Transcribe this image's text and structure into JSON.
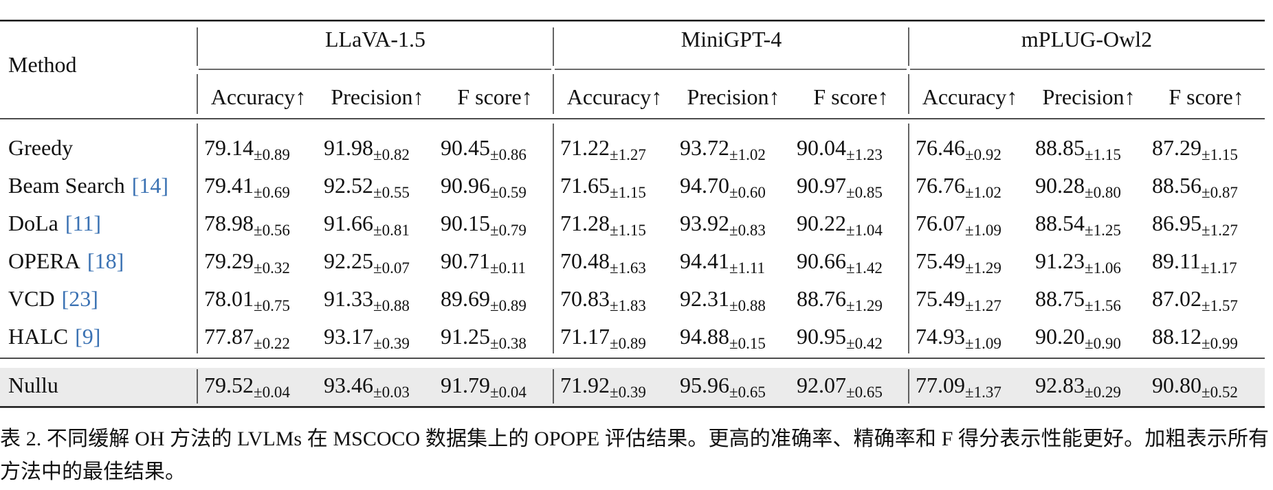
{
  "table": {
    "method_header": "Method",
    "models": [
      {
        "name": "LLaVA-1.5",
        "metrics": [
          "Accuracy↑",
          "Precision↑",
          "F score↑"
        ]
      },
      {
        "name": "MiniGPT-4",
        "metrics": [
          "Accuracy↑",
          "Precision↑",
          "F score↑"
        ]
      },
      {
        "name": "mPLUG-Owl2",
        "metrics": [
          "Accuracy↑",
          "Precision↑",
          "F score↑"
        ]
      }
    ],
    "rows": [
      {
        "method": "Greedy",
        "values": [
          {
            "mean": "79.14",
            "std": "±0.89"
          },
          {
            "mean": "91.98",
            "std": "±0.82"
          },
          {
            "mean": "90.45",
            "std": "±0.86"
          },
          {
            "mean": "71.22",
            "std": "±1.27"
          },
          {
            "mean": "93.72",
            "std": "±1.02"
          },
          {
            "mean": "90.04",
            "std": "±1.23"
          },
          {
            "mean": "76.46",
            "std": "±0.92"
          },
          {
            "mean": "88.85",
            "std": "±1.15"
          },
          {
            "mean": "87.29",
            "std": "±1.15"
          }
        ]
      },
      {
        "method": "Beam Search",
        "cite": "[14]",
        "values": [
          {
            "mean": "79.41",
            "std": "±0.69"
          },
          {
            "mean": "92.52",
            "std": "±0.55"
          },
          {
            "mean": "90.96",
            "std": "±0.59"
          },
          {
            "mean": "71.65",
            "std": "±1.15"
          },
          {
            "mean": "94.70",
            "std": "±0.60"
          },
          {
            "mean": "90.97",
            "std": "±0.85"
          },
          {
            "mean": "76.76",
            "std": "±1.02"
          },
          {
            "mean": "90.28",
            "std": "±0.80"
          },
          {
            "mean": "88.56",
            "std": "±0.87"
          }
        ]
      },
      {
        "method": "DoLa",
        "cite": "[11]",
        "values": [
          {
            "mean": "78.98",
            "std": "±0.56"
          },
          {
            "mean": "91.66",
            "std": "±0.81"
          },
          {
            "mean": "90.15",
            "std": "±0.79"
          },
          {
            "mean": "71.28",
            "std": "±1.15"
          },
          {
            "mean": "93.92",
            "std": "±0.83"
          },
          {
            "mean": "90.22",
            "std": "±1.04"
          },
          {
            "mean": "76.07",
            "std": "±1.09"
          },
          {
            "mean": "88.54",
            "std": "±1.25"
          },
          {
            "mean": "86.95",
            "std": "±1.27"
          }
        ]
      },
      {
        "method": "OPERA",
        "cite": "[18]",
        "values": [
          {
            "mean": "79.29",
            "std": "±0.32"
          },
          {
            "mean": "92.25",
            "std": "±0.07"
          },
          {
            "mean": "90.71",
            "std": "±0.11"
          },
          {
            "mean": "70.48",
            "std": "±1.63"
          },
          {
            "mean": "94.41",
            "std": "±1.11"
          },
          {
            "mean": "90.66",
            "std": "±1.42"
          },
          {
            "mean": "75.49",
            "std": "±1.29"
          },
          {
            "mean": "91.23",
            "std": "±1.06"
          },
          {
            "mean": "89.11",
            "std": "±1.17"
          }
        ]
      },
      {
        "method": "VCD",
        "cite": "[23]",
        "values": [
          {
            "mean": "78.01",
            "std": "±0.75"
          },
          {
            "mean": "91.33",
            "std": "±0.88"
          },
          {
            "mean": "89.69",
            "std": "±0.89"
          },
          {
            "mean": "70.83",
            "std": "±1.83"
          },
          {
            "mean": "92.31",
            "std": "±0.88"
          },
          {
            "mean": "88.76",
            "std": "±1.29"
          },
          {
            "mean": "75.49",
            "std": "±1.27"
          },
          {
            "mean": "88.75",
            "std": "±1.56"
          },
          {
            "mean": "87.02",
            "std": "±1.57"
          }
        ]
      },
      {
        "method": "HALC",
        "cite": "[9]",
        "values": [
          {
            "mean": "77.87",
            "std": "±0.22"
          },
          {
            "mean": "93.17",
            "std": "±0.39"
          },
          {
            "mean": "91.25",
            "std": "±0.38"
          },
          {
            "mean": "71.17",
            "std": "±0.89"
          },
          {
            "mean": "94.88",
            "std": "±0.15"
          },
          {
            "mean": "90.95",
            "std": "±0.42"
          },
          {
            "mean": "74.93",
            "std": "±1.09"
          },
          {
            "mean": "90.20",
            "std": "±0.90"
          },
          {
            "mean": "88.12",
            "std": "±0.99"
          }
        ]
      }
    ],
    "proposed_row": {
      "method": "Nullu",
      "values": [
        {
          "mean": "79.52",
          "std": "±0.04"
        },
        {
          "mean": "93.46",
          "std": "±0.03"
        },
        {
          "mean": "91.79",
          "std": "±0.04"
        },
        {
          "mean": "71.92",
          "std": "±0.39"
        },
        {
          "mean": "95.96",
          "std": "±0.65"
        },
        {
          "mean": "92.07",
          "std": "±0.65"
        },
        {
          "mean": "77.09",
          "std": "±1.37"
        },
        {
          "mean": "92.83",
          "std": "±0.29"
        },
        {
          "mean": "90.80",
          "std": "±0.52"
        }
      ]
    }
  },
  "caption": "表 2. 不同缓解 OH 方法的 LVLMs 在 MSCOCO 数据集上的 OPOPE 评估结果。更高的准确率、精确率和 F 得分表示性能更好。加粗表示所有方法中的最佳结果。"
}
